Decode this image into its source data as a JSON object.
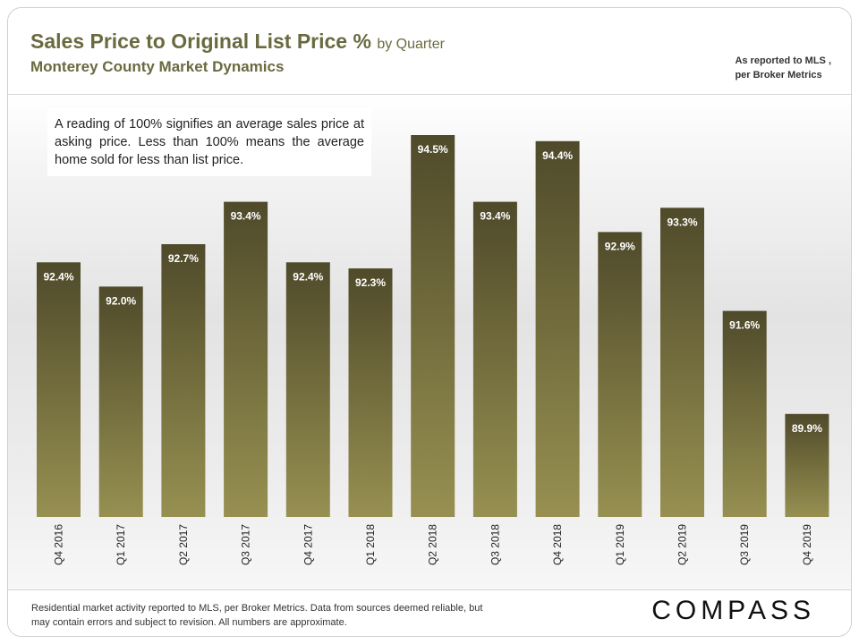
{
  "header": {
    "title": "Sales Price to Original List Price %",
    "title_suffix": "by Quarter",
    "subtitle": "Monterey County Market Dynamics",
    "source_line1": "As reported to MLS ,",
    "source_line2": "per Broker Metrics"
  },
  "note": "A reading of 100% signifies an average sales price at asking price. Less than 100% means the average home sold for less than list price.",
  "footer": {
    "disclaimer": "Residential market activity reported to MLS, per Broker Metrics. Data from sources deemed reliable, but may contain errors and subject to revision. All numbers are approximate.",
    "logo": "COMPASS"
  },
  "colors": {
    "bar_top": "#4f4a2a",
    "bar_bottom": "#979051",
    "label": "#ffffff"
  },
  "chart_data": {
    "type": "bar",
    "title": "Sales Price to Original List Price % by Quarter",
    "categories": [
      "Q4 2016",
      "Q1 2017",
      "Q2 2017",
      "Q3 2017",
      "Q4 2017",
      "Q1 2018",
      "Q2 2018",
      "Q3 2018",
      "Q4 2018",
      "Q1 2019",
      "Q2 2019",
      "Q3 2019",
      "Q4 2019"
    ],
    "values": [
      92.4,
      92.0,
      92.7,
      93.4,
      92.4,
      92.3,
      94.5,
      93.4,
      94.4,
      92.9,
      93.3,
      91.6,
      89.9
    ],
    "labels": [
      "92.4%",
      "92.0%",
      "92.7%",
      "93.4%",
      "92.4%",
      "92.3%",
      "94.5%",
      "93.4%",
      "94.4%",
      "92.9%",
      "93.3%",
      "91.6%",
      "89.9%"
    ],
    "xlabel": "",
    "ylabel": "",
    "ylim": [
      88.2,
      94.5
    ]
  }
}
